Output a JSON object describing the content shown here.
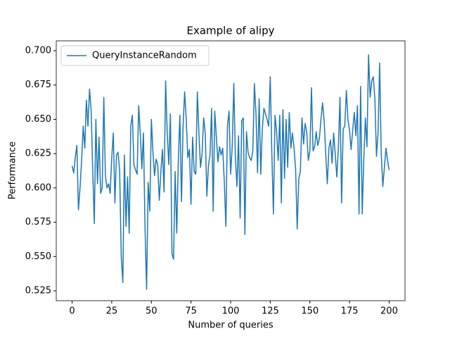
{
  "chart_data": {
    "type": "line",
    "title": "Example of alipy",
    "xlabel": "Number of queries",
    "ylabel": "Performance",
    "legend": "upper left",
    "x": [
      0,
      1,
      2,
      3,
      4,
      5,
      6,
      7,
      8,
      9,
      10,
      11,
      12,
      13,
      14,
      15,
      16,
      17,
      18,
      19,
      20,
      21,
      22,
      23,
      24,
      25,
      26,
      27,
      28,
      29,
      30,
      31,
      32,
      33,
      34,
      35,
      36,
      37,
      38,
      39,
      40,
      41,
      42,
      43,
      44,
      45,
      46,
      47,
      48,
      49,
      50,
      51,
      52,
      53,
      54,
      55,
      56,
      57,
      58,
      59,
      60,
      61,
      62,
      63,
      64,
      65,
      66,
      67,
      68,
      69,
      70,
      71,
      72,
      73,
      74,
      75,
      76,
      77,
      78,
      79,
      80,
      81,
      82,
      83,
      84,
      85,
      86,
      87,
      88,
      89,
      90,
      91,
      92,
      93,
      94,
      95,
      96,
      97,
      98,
      99,
      100,
      101,
      102,
      103,
      104,
      105,
      106,
      107,
      108,
      109,
      110,
      111,
      112,
      113,
      114,
      115,
      116,
      117,
      118,
      119,
      120,
      121,
      122,
      123,
      124,
      125,
      126,
      127,
      128,
      129,
      130,
      131,
      132,
      133,
      134,
      135,
      136,
      137,
      138,
      139,
      140,
      141,
      142,
      143,
      144,
      145,
      146,
      147,
      148,
      149,
      150,
      151,
      152,
      153,
      154,
      155,
      156,
      157,
      158,
      159,
      160,
      161,
      162,
      163,
      164,
      165,
      166,
      167,
      168,
      169,
      170,
      171,
      172,
      173,
      174,
      175,
      176,
      177,
      178,
      179,
      180,
      181,
      182,
      183,
      184,
      185,
      186,
      187,
      188,
      189,
      190,
      191,
      192,
      193,
      194,
      195,
      196,
      197,
      198,
      199,
      200
    ],
    "series": [
      {
        "name": "QueryInstanceRandom",
        "color": "#1f77b4",
        "values": [
          0.616,
          0.611,
          0.622,
          0.631,
          0.584,
          0.6,
          0.62,
          0.645,
          0.629,
          0.664,
          0.645,
          0.672,
          0.657,
          0.613,
          0.574,
          0.65,
          0.603,
          0.637,
          0.596,
          0.6,
          0.666,
          0.609,
          0.6,
          0.603,
          0.596,
          0.622,
          0.64,
          0.589,
          0.624,
          0.626,
          0.612,
          0.55,
          0.531,
          0.624,
          0.572,
          0.608,
          0.567,
          0.645,
          0.653,
          0.617,
          0.613,
          0.61,
          0.66,
          0.64,
          0.614,
          0.64,
          0.571,
          0.526,
          0.604,
          0.583,
          0.65,
          0.626,
          0.609,
          0.621,
          0.617,
          0.591,
          0.612,
          0.628,
          0.597,
          0.678,
          0.64,
          0.617,
          0.654,
          0.552,
          0.548,
          0.612,
          0.567,
          0.62,
          0.653,
          0.59,
          0.645,
          0.67,
          0.65,
          0.622,
          0.628,
          0.588,
          0.637,
          0.612,
          0.61,
          0.67,
          0.64,
          0.615,
          0.625,
          0.651,
          0.64,
          0.594,
          0.616,
          0.624,
          0.658,
          0.583,
          0.656,
          0.637,
          0.619,
          0.63,
          0.624,
          0.629,
          0.605,
          0.572,
          0.645,
          0.656,
          0.61,
          0.63,
          0.676,
          0.622,
          0.601,
          0.638,
          0.578,
          0.649,
          0.651,
          0.566,
          0.641,
          0.626,
          0.622,
          0.62,
          0.627,
          0.676,
          0.654,
          0.611,
          0.665,
          0.61,
          0.643,
          0.658,
          0.654,
          0.65,
          0.645,
          0.681,
          0.625,
          0.581,
          0.653,
          0.641,
          0.62,
          0.653,
          0.589,
          0.657,
          0.607,
          0.65,
          0.615,
          0.655,
          0.629,
          0.64,
          0.629,
          0.614,
          0.57,
          0.607,
          0.612,
          0.651,
          0.632,
          0.647,
          0.641,
          0.62,
          0.627,
          0.673,
          0.627,
          0.63,
          0.641,
          0.631,
          0.636,
          0.65,
          0.662,
          0.649,
          0.625,
          0.603,
          0.629,
          0.635,
          0.618,
          0.64,
          0.624,
          0.608,
          0.63,
          0.666,
          0.589,
          0.643,
          0.645,
          0.671,
          0.65,
          0.642,
          0.628,
          0.642,
          0.655,
          0.638,
          0.66,
          0.581,
          0.674,
          0.581,
          0.62,
          0.651,
          0.63,
          0.697,
          0.666,
          0.678,
          0.681,
          0.665,
          0.623,
          0.64,
          0.691,
          0.625,
          0.601,
          0.615,
          0.629,
          0.62,
          0.613
        ]
      }
    ],
    "xlim": [
      -10,
      210
    ],
    "xticks": [
      0,
      25,
      50,
      75,
      100,
      125,
      150,
      175,
      200
    ],
    "ylim": [
      0.5178,
      0.7072
    ],
    "yticks": [
      0.525,
      {
        "value": 0.55,
        "label": "0.550"
      },
      0.575,
      {
        "value": 0.6,
        "label": "0.600"
      },
      0.625,
      {
        "value": 0.65,
        "label": "0.650"
      },
      0.675,
      {
        "value": 0.7,
        "label": "0.700"
      }
    ]
  }
}
